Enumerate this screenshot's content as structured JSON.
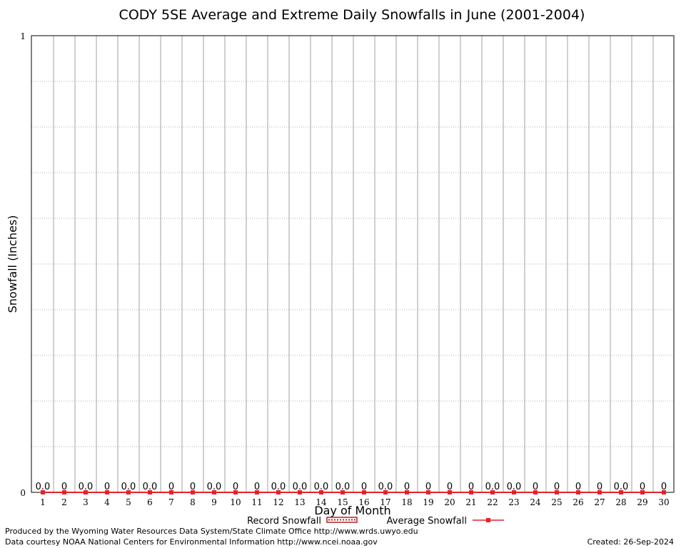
{
  "chart_data": {
    "type": "bar",
    "title": "CODY 5SE Average and Extreme Daily Snowfalls in June (2001-2004)",
    "xlabel": "Day of Month",
    "ylabel": "Snowfall (Inches)",
    "categories": [
      "1",
      "2",
      "3",
      "4",
      "5",
      "6",
      "7",
      "8",
      "9",
      "10",
      "11",
      "12",
      "13",
      "14",
      "15",
      "16",
      "17",
      "18",
      "19",
      "20",
      "21",
      "22",
      "23",
      "24",
      "25",
      "26",
      "27",
      "28",
      "29",
      "30"
    ],
    "ylim": [
      0,
      1
    ],
    "y_ticks": [
      "0",
      "1"
    ],
    "grid": true,
    "legend_position": "bottom",
    "series": [
      {
        "name": "Record Snowfall",
        "type": "bar",
        "color": "#b22222",
        "values": [
          0,
          0,
          0,
          0,
          0,
          0,
          0,
          0,
          0,
          0,
          0,
          0,
          0,
          0,
          0,
          0,
          0,
          0,
          0,
          0,
          0,
          0,
          0,
          0,
          0,
          0,
          0,
          0,
          0,
          0
        ]
      },
      {
        "name": "Average Snowfall",
        "type": "line",
        "color": "#e8202a",
        "values": [
          0,
          0,
          0,
          0,
          0,
          0,
          0,
          0,
          0,
          0,
          0,
          0,
          0,
          0,
          0,
          0,
          0,
          0,
          0,
          0,
          0,
          0,
          0,
          0,
          0,
          0,
          0,
          0,
          0,
          0
        ]
      }
    ],
    "data_labels": [
      "0.0",
      "0",
      "0.0",
      "0",
      "0.0",
      "0.0",
      "0",
      "0",
      "0.0",
      "0",
      "0",
      "0.0",
      "0.0",
      "0.0",
      "0.0",
      "0",
      "0.0",
      "0",
      "0",
      "0",
      "0",
      "0.0",
      "0.0",
      "0",
      "0",
      "0",
      "0",
      "0.0",
      "0",
      "0"
    ]
  },
  "footer": {
    "produced_by": "Produced by the Wyoming Water Resources Data System/State Climate Office http://www.wrds.uwyo.edu",
    "courtesy": "Data courtesy NOAA National Centers for Environmental Information http://www.ncei.noaa.gov",
    "created": "Created: 26-Sep-2024"
  }
}
